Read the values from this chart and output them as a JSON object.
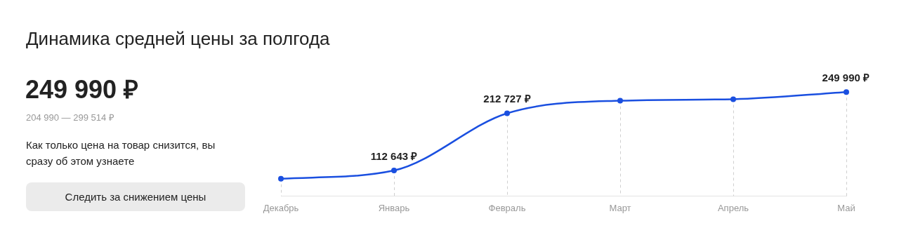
{
  "chart_data": {
    "type": "line",
    "title": "Динамика средней цены за полгода",
    "annotations": [
      "249 990 ₽",
      "204 990 — 299 514 ₽",
      "Как только цена на товар снизится, вы сразу об этом узнаете",
      "Следить за снижением цены"
    ],
    "categories": [
      "Декабрь",
      "Январь",
      "Февраль",
      "Март",
      "Апрель",
      "Май"
    ],
    "series": [
      {
        "color": "#1a4fe0",
        "values": [
          98300,
          112643,
          212727,
          234800,
          237400,
          249990
        ],
        "value_labels": [
          null,
          "112 643 ₽",
          "212 727 ₽",
          null,
          null,
          "249 990 ₽"
        ]
      }
    ],
    "marker": "circle",
    "grid": "x",
    "legend": false,
    "tick_labels": "x"
  }
}
